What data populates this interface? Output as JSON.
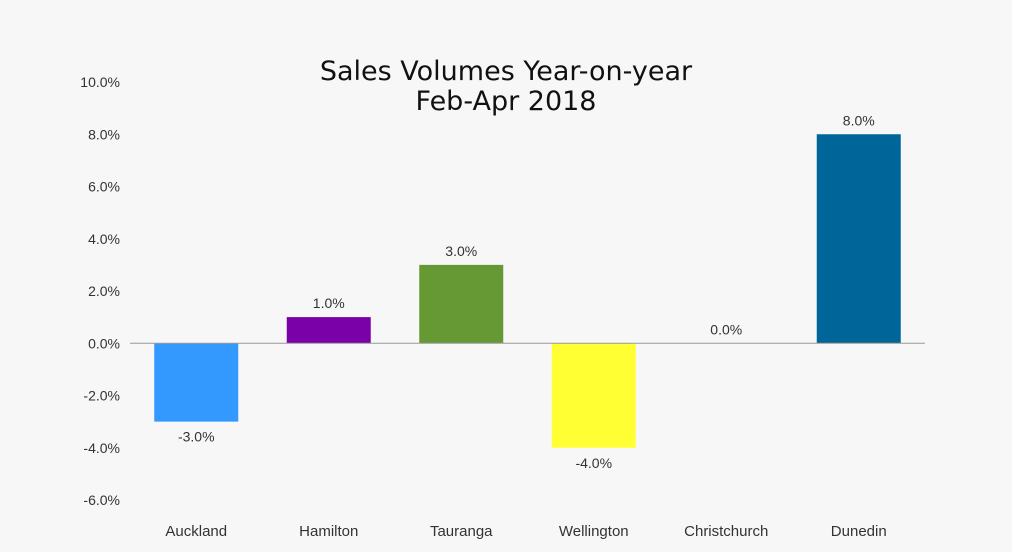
{
  "chart_data": {
    "type": "bar",
    "title": "Sales Volumes Year-on-year",
    "subtitle": "Feb-Apr 2018",
    "categories": [
      "Auckland",
      "Hamilton",
      "Tauranga",
      "Wellington",
      "Christchurch",
      "Dunedin"
    ],
    "values": [
      -3.0,
      1.0,
      3.0,
      -4.0,
      0.0,
      8.0
    ],
    "value_labels": [
      "-3.0%",
      "1.0%",
      "3.0%",
      "-4.0%",
      "0.0%",
      "8.0%"
    ],
    "colors": [
      "#3399ff",
      "#7a00a8",
      "#669933",
      "#ffff33",
      "#cccccc",
      "#006699"
    ],
    "ylim": [
      -6,
      10
    ],
    "yticks": [
      10,
      8,
      6,
      4,
      2,
      0,
      -2,
      -4,
      -6
    ],
    "ytick_labels": [
      "10.0%",
      "8.0%",
      "6.0%",
      "4.0%",
      "2.0%",
      "0.0%",
      "-2.0%",
      "-4.0%",
      "-6.0%"
    ],
    "xlabel": "",
    "ylabel": "",
    "grid": false,
    "legend": "none"
  }
}
